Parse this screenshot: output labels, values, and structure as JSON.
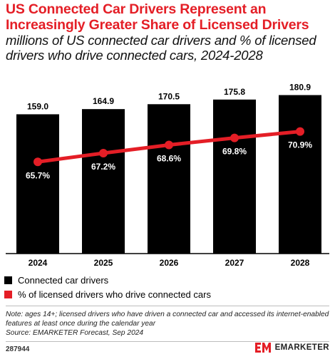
{
  "title": "US Connected Car Drivers Represent an Increasingly Greater Share of Licensed Drivers",
  "subtitle": "millions of US connected car drivers and % of licensed drivers who drive connected cars, 2024-2028",
  "colors": {
    "bar": "#000000",
    "line": "#e41e26",
    "title": "#e41e26"
  },
  "chart_data": {
    "type": "bar",
    "categories": [
      "2024",
      "2025",
      "2026",
      "2027",
      "2028"
    ],
    "series": [
      {
        "name": "Connected car drivers",
        "type": "bar",
        "values": [
          159.0,
          164.9,
          170.5,
          175.8,
          180.9
        ],
        "labels": [
          "159.0",
          "164.9",
          "170.5",
          "175.8",
          "180.9"
        ]
      },
      {
        "name": "% of licensed drivers who drive connected cars",
        "type": "line",
        "values": [
          65.7,
          67.2,
          68.6,
          69.8,
          70.9
        ],
        "labels": [
          "65.7%",
          "67.2%",
          "68.6%",
          "69.8%",
          "70.9%"
        ]
      }
    ],
    "title": "US Connected Car Drivers Represent an Increasingly Greater Share of Licensed Drivers",
    "xlabel": "",
    "ylabel": "",
    "ylim": [
      0,
      200
    ],
    "ylim_secondary": [
      50,
      80
    ],
    "grid": false,
    "legend": "bottom-left"
  },
  "note": "Note: ages 14+; licensed drivers who have driven a connected car and accessed its internet-enabled features at least once during the calendar year",
  "source": "Source: EMARKETER Forecast, Sep 2024",
  "footer": {
    "id": "287944",
    "brand": "EMARKETER",
    "logo_icon": "em-logo-icon"
  }
}
